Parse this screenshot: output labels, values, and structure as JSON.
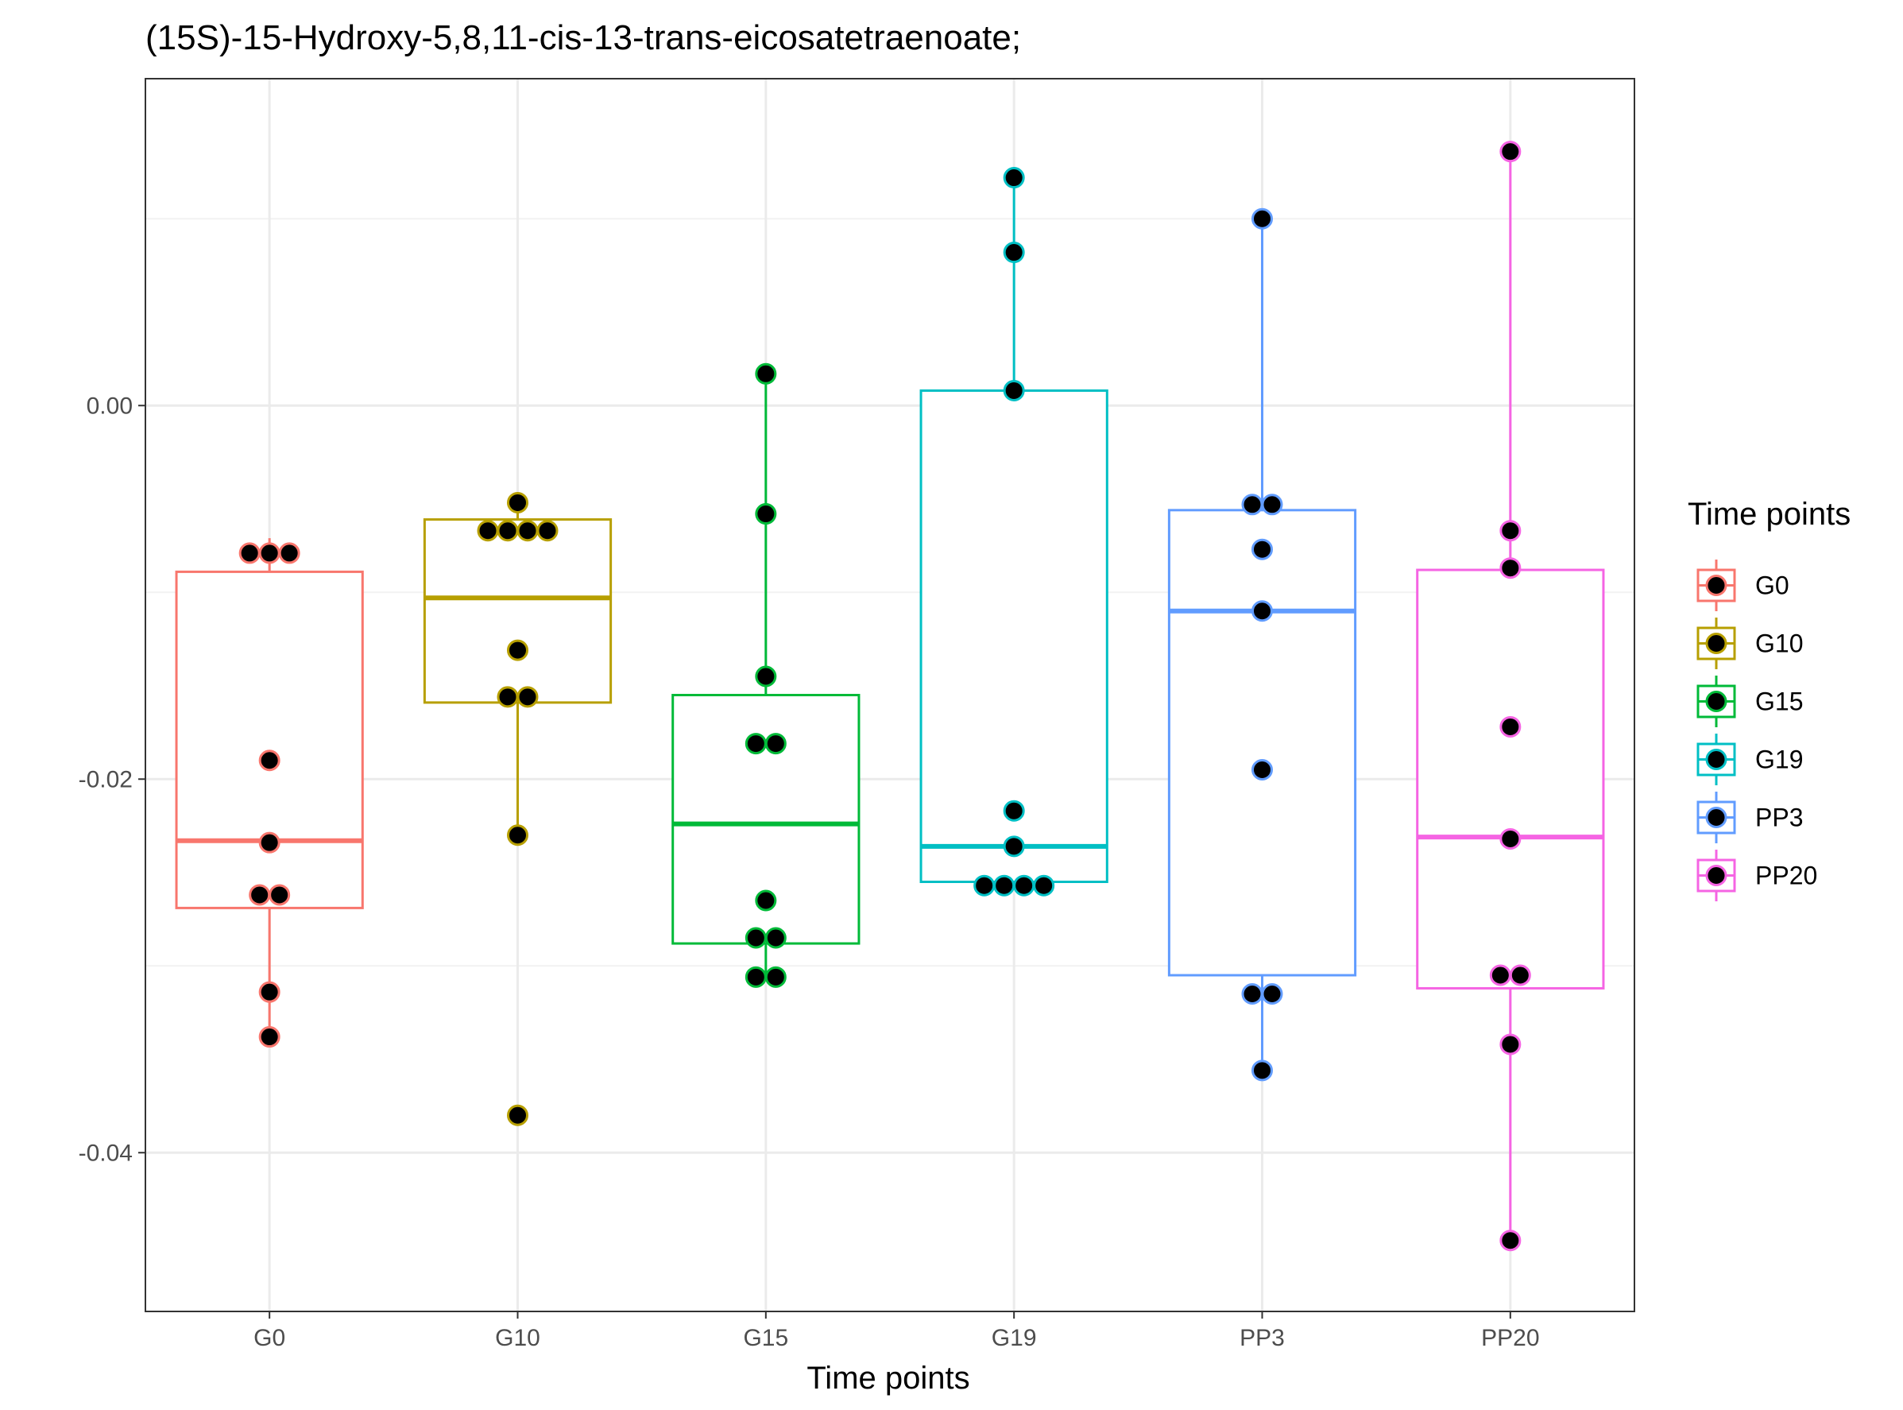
{
  "chart_data": {
    "type": "boxplot",
    "title": "(15S)-15-Hydroxy-5,8,11-cis-13-trans-eicosatetraenoate;",
    "xlabel": "Time points",
    "ylabel": "",
    "ylim": [
      -0.0485,
      0.0175
    ],
    "yticks": [
      0.0,
      -0.02,
      -0.04
    ],
    "ytick_labels": [
      "0.00",
      "-0.02",
      "-0.04"
    ],
    "grid": true,
    "legend": {
      "title": "Time points",
      "position": "right"
    },
    "categories": [
      "G0",
      "G10",
      "G15",
      "G19",
      "PP3",
      "PP20"
    ],
    "series": [
      {
        "name": "G0",
        "color": "#F8766D",
        "box": {
          "lower_whisker": -0.0337,
          "q1": -0.0269,
          "median": -0.0233,
          "q3": -0.0089,
          "upper_whisker": -0.0071
        },
        "points": [
          -0.0079,
          -0.0079,
          -0.0079,
          -0.019,
          -0.0234,
          -0.0262,
          -0.0262,
          -0.0314,
          -0.0338
        ]
      },
      {
        "name": "G10",
        "color": "#B79F00",
        "box": {
          "lower_whisker": -0.0233,
          "q1": -0.0159,
          "median": -0.0103,
          "q3": -0.0061,
          "upper_whisker": -0.0051
        },
        "points": [
          -0.0052,
          -0.0067,
          -0.0067,
          -0.0067,
          -0.0067,
          -0.0131,
          -0.0156,
          -0.0156,
          -0.023,
          -0.038
        ]
      },
      {
        "name": "G15",
        "color": "#00BA38",
        "box": {
          "lower_whisker": -0.0305,
          "q1": -0.0288,
          "median": -0.0224,
          "q3": -0.0155,
          "upper_whisker": 0.0016
        },
        "points": [
          0.0017,
          -0.0058,
          -0.0145,
          -0.0181,
          -0.0181,
          -0.0265,
          -0.0285,
          -0.0285,
          -0.0306,
          -0.0306
        ]
      },
      {
        "name": "G19",
        "color": "#00BFC4",
        "box": {
          "lower_whisker": -0.0257,
          "q1": -0.0255,
          "median": -0.0236,
          "q3": 0.0008,
          "upper_whisker": 0.0122
        },
        "points": [
          0.0122,
          0.0082,
          0.0008,
          -0.0217,
          -0.0236,
          -0.0257,
          -0.0257,
          -0.0257,
          -0.0257
        ]
      },
      {
        "name": "PP3",
        "color": "#619CFF",
        "box": {
          "lower_whisker": -0.0355,
          "q1": -0.0305,
          "median": -0.011,
          "q3": -0.0056,
          "upper_whisker": 0.01
        },
        "points": [
          0.01,
          -0.0053,
          -0.0053,
          -0.0077,
          -0.011,
          -0.0195,
          -0.0315,
          -0.0315,
          -0.0356
        ]
      },
      {
        "name": "PP20",
        "color": "#F564E3",
        "box": {
          "lower_whisker": -0.0446,
          "q1": -0.0312,
          "median": -0.0231,
          "q3": -0.0088,
          "upper_whisker": 0.0136
        },
        "points": [
          0.0136,
          -0.0067,
          -0.0087,
          -0.0172,
          -0.0232,
          -0.0305,
          -0.0305,
          -0.0342,
          -0.0447
        ]
      }
    ]
  }
}
